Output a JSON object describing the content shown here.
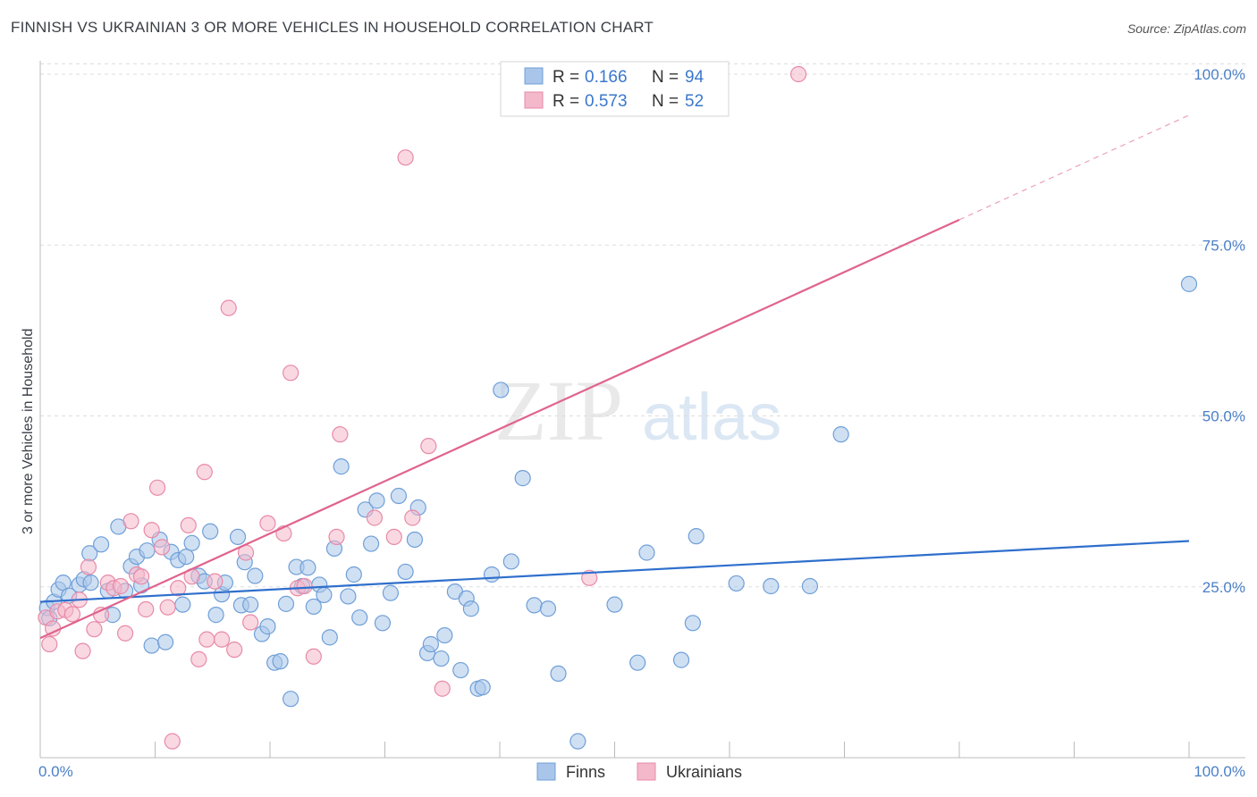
{
  "title": "FINNISH VS UKRAINIAN 3 OR MORE VEHICLES IN HOUSEHOLD CORRELATION CHART",
  "source": "Source: ZipAtlas.com",
  "watermark": {
    "zip": "ZIP",
    "atlas": "atlas"
  },
  "colors": {
    "finns_fill": "#a9c6ea",
    "finns_stroke": "#6f9fd8",
    "finns_line": "#2f6fcc",
    "ukr_fill": "#f4b8cb",
    "ukr_stroke": "#e88aa8",
    "ukr_line": "#e0638d",
    "axis_label": "#4a7fc8",
    "grid": "#dddddd"
  },
  "legend": {
    "finns": {
      "r_label": "R = ",
      "r_value": "0.166",
      "n_label": "N = ",
      "n_value": "94"
    },
    "ukrainians": {
      "r_label": "R = ",
      "r_value": "0.573",
      "n_label": "N = ",
      "n_value": "52"
    }
  },
  "bottom_legend": {
    "finns": "Finns",
    "ukrainians": "Ukrainians"
  },
  "chart_data": {
    "type": "scatter",
    "title": "FINNISH VS UKRAINIAN 3 OR MORE VEHICLES IN HOUSEHOLD CORRELATION CHART",
    "xlabel": "",
    "ylabel": "3 or more Vehicles in Household",
    "xlim": [
      0,
      100
    ],
    "ylim": [
      0,
      102
    ],
    "x_tick_labels": {
      "left": "0.0%",
      "right": "100.0%"
    },
    "y_ticks": [
      {
        "value": 25,
        "label": "25.0%"
      },
      {
        "value": 50,
        "label": "50.0%"
      },
      {
        "value": 75,
        "label": "75.0%"
      },
      {
        "value": 100,
        "label": "100.0%"
      }
    ],
    "series": [
      {
        "name": "Finns",
        "r": 0.166,
        "n": 94,
        "trend": {
          "x": [
            0,
            100
          ],
          "y": [
            22.8,
            31.7
          ]
        },
        "points": [
          [
            0.6,
            21.9
          ],
          [
            0.8,
            20.4
          ],
          [
            1.2,
            22.8
          ],
          [
            1.6,
            24.6
          ],
          [
            2.0,
            25.6
          ],
          [
            2.5,
            23.7
          ],
          [
            3.4,
            25.3
          ],
          [
            3.8,
            26.1
          ],
          [
            4.3,
            29.9
          ],
          [
            4.4,
            25.6
          ],
          [
            5.3,
            31.2
          ],
          [
            5.9,
            24.4
          ],
          [
            6.3,
            20.9
          ],
          [
            6.8,
            33.8
          ],
          [
            7.4,
            24.4
          ],
          [
            7.9,
            28.0
          ],
          [
            8.4,
            29.4
          ],
          [
            8.8,
            25.2
          ],
          [
            9.3,
            30.3
          ],
          [
            9.7,
            16.4
          ],
          [
            10.4,
            31.9
          ],
          [
            10.9,
            16.9
          ],
          [
            11.4,
            30.1
          ],
          [
            12.0,
            28.9
          ],
          [
            12.4,
            22.4
          ],
          [
            12.7,
            29.4
          ],
          [
            13.2,
            31.4
          ],
          [
            13.8,
            26.6
          ],
          [
            14.3,
            25.8
          ],
          [
            14.8,
            33.1
          ],
          [
            15.3,
            20.9
          ],
          [
            15.8,
            23.9
          ],
          [
            16.1,
            25.6
          ],
          [
            17.2,
            32.3
          ],
          [
            17.5,
            22.3
          ],
          [
            17.8,
            28.6
          ],
          [
            18.3,
            22.4
          ],
          [
            18.7,
            26.6
          ],
          [
            19.3,
            18.1
          ],
          [
            19.8,
            19.2
          ],
          [
            20.4,
            13.9
          ],
          [
            20.9,
            14.1
          ],
          [
            21.4,
            22.5
          ],
          [
            21.8,
            8.6
          ],
          [
            22.3,
            27.9
          ],
          [
            22.8,
            25.1
          ],
          [
            23.3,
            27.8
          ],
          [
            23.8,
            22.1
          ],
          [
            24.3,
            25.3
          ],
          [
            24.7,
            23.8
          ],
          [
            25.2,
            17.6
          ],
          [
            25.6,
            30.6
          ],
          [
            26.2,
            42.6
          ],
          [
            26.8,
            23.6
          ],
          [
            27.3,
            26.8
          ],
          [
            27.8,
            20.5
          ],
          [
            28.3,
            36.3
          ],
          [
            28.8,
            31.3
          ],
          [
            29.3,
            37.6
          ],
          [
            29.8,
            19.7
          ],
          [
            30.5,
            24.1
          ],
          [
            31.2,
            38.3
          ],
          [
            31.8,
            27.2
          ],
          [
            32.6,
            31.9
          ],
          [
            32.9,
            36.6
          ],
          [
            33.7,
            15.3
          ],
          [
            34.0,
            16.6
          ],
          [
            34.9,
            14.5
          ],
          [
            35.2,
            17.9
          ],
          [
            36.1,
            24.3
          ],
          [
            36.6,
            12.8
          ],
          [
            37.1,
            23.3
          ],
          [
            37.5,
            21.8
          ],
          [
            38.1,
            10.1
          ],
          [
            38.5,
            10.3
          ],
          [
            39.3,
            26.8
          ],
          [
            40.1,
            53.8
          ],
          [
            41.0,
            28.7
          ],
          [
            42.0,
            40.9
          ],
          [
            43.0,
            22.3
          ],
          [
            44.2,
            21.8
          ],
          [
            45.1,
            12.3
          ],
          [
            46.8,
            2.4
          ],
          [
            50.0,
            22.4
          ],
          [
            52.0,
            13.9
          ],
          [
            52.8,
            30.0
          ],
          [
            55.8,
            14.3
          ],
          [
            56.8,
            19.7
          ],
          [
            57.1,
            32.4
          ],
          [
            60.6,
            25.5
          ],
          [
            63.6,
            25.1
          ],
          [
            67.0,
            25.1
          ],
          [
            69.7,
            47.3
          ],
          [
            100.0,
            69.3
          ]
        ]
      },
      {
        "name": "Ukrainians",
        "r": 0.573,
        "n": 52,
        "trend": {
          "x": [
            0,
            80
          ],
          "y": [
            17.5,
            78.7
          ]
        },
        "trend_dashed": {
          "x": [
            80,
            100
          ],
          "y": [
            78.7,
            94.0
          ]
        },
        "points": [
          [
            0.5,
            20.5
          ],
          [
            0.8,
            16.6
          ],
          [
            1.1,
            18.9
          ],
          [
            1.5,
            21.4
          ],
          [
            2.2,
            21.6
          ],
          [
            2.8,
            21.0
          ],
          [
            3.4,
            23.1
          ],
          [
            3.7,
            15.6
          ],
          [
            4.2,
            27.9
          ],
          [
            4.7,
            18.8
          ],
          [
            5.3,
            20.9
          ],
          [
            5.9,
            25.6
          ],
          [
            6.4,
            24.8
          ],
          [
            7.0,
            25.1
          ],
          [
            7.4,
            18.2
          ],
          [
            7.9,
            34.6
          ],
          [
            8.4,
            26.8
          ],
          [
            8.8,
            26.5
          ],
          [
            9.2,
            21.7
          ],
          [
            9.7,
            33.3
          ],
          [
            10.2,
            39.5
          ],
          [
            10.6,
            30.8
          ],
          [
            11.1,
            22.0
          ],
          [
            11.5,
            2.4
          ],
          [
            12.0,
            24.8
          ],
          [
            12.9,
            34.0
          ],
          [
            13.2,
            26.5
          ],
          [
            13.8,
            14.4
          ],
          [
            14.3,
            41.8
          ],
          [
            14.5,
            17.3
          ],
          [
            15.2,
            25.8
          ],
          [
            15.8,
            17.3
          ],
          [
            16.4,
            65.8
          ],
          [
            16.9,
            15.8
          ],
          [
            17.9,
            30.0
          ],
          [
            18.3,
            19.8
          ],
          [
            19.8,
            34.3
          ],
          [
            21.2,
            32.8
          ],
          [
            21.8,
            56.3
          ],
          [
            22.4,
            24.8
          ],
          [
            23.0,
            25.1
          ],
          [
            23.8,
            14.8
          ],
          [
            25.8,
            32.3
          ],
          [
            26.1,
            47.3
          ],
          [
            29.1,
            35.1
          ],
          [
            30.8,
            32.3
          ],
          [
            31.8,
            87.8
          ],
          [
            32.4,
            35.1
          ],
          [
            33.8,
            45.6
          ],
          [
            35.0,
            10.1
          ],
          [
            47.8,
            26.3
          ],
          [
            66.0,
            100.0
          ]
        ]
      }
    ]
  }
}
